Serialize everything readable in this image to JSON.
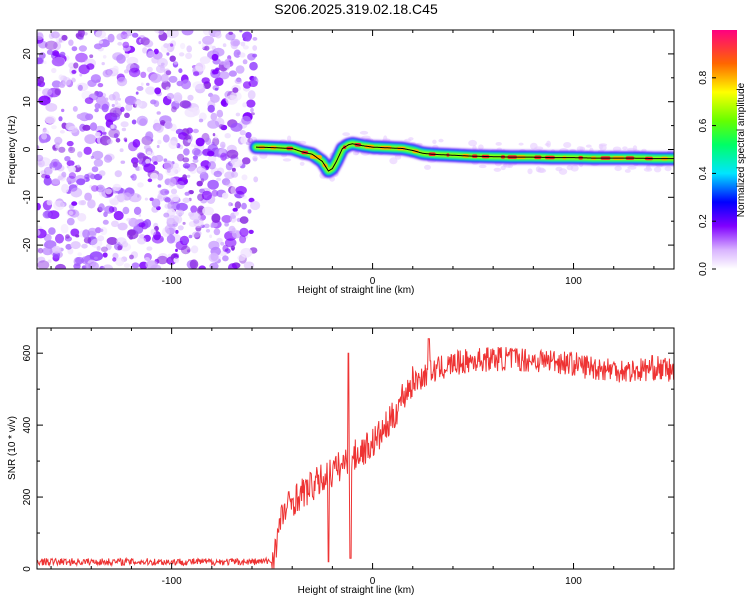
{
  "title": "S206.2025.319.02.18.C45",
  "colors": {
    "snr_line": "#ee3333",
    "ridge_line": "#000000",
    "speckle": "#8a2be2"
  },
  "chart_data": [
    {
      "type": "heatmap",
      "name": "spectrogram",
      "title": "S206.2025.319.02.18.C45",
      "xlabel": "Height of straight line (km)",
      "ylabel": "Frequency (Hz)",
      "xlim": [
        -167,
        150
      ],
      "ylim": [
        -25,
        25
      ],
      "xticks": [
        -100,
        0,
        100
      ],
      "yticks": [
        -20,
        -10,
        0,
        10,
        20
      ],
      "noise_region_x": [
        -167,
        -58
      ],
      "ridge": {
        "x": [
          -58,
          -50,
          -45,
          -40,
          -35,
          -30,
          -25,
          -22,
          -20,
          -18,
          -15,
          -12,
          -10,
          -5,
          0,
          5,
          10,
          15,
          20,
          25,
          30,
          40,
          50,
          60,
          70,
          80,
          90,
          100,
          110,
          120,
          130,
          140,
          150
        ],
        "y": [
          0.5,
          0.4,
          0.3,
          0.2,
          -0.5,
          -1.0,
          -2.5,
          -4.5,
          -4.0,
          -2.5,
          0.2,
          1.0,
          1.2,
          0.8,
          0.5,
          0.4,
          0.3,
          0.2,
          -0.2,
          -0.8,
          -1.0,
          -1.2,
          -1.4,
          -1.5,
          -1.6,
          -1.6,
          -1.7,
          -1.7,
          -1.8,
          -1.8,
          -1.8,
          -1.9,
          -1.9
        ]
      },
      "colorbar": {
        "label": "Normalized spectral amplitude",
        "range": [
          0,
          1
        ],
        "ticks": [
          0,
          0.2,
          0.4,
          0.6,
          0.8
        ],
        "tick_labels": [
          "0.0",
          "0.2",
          "0.4",
          "0.6",
          "0.8"
        ]
      }
    },
    {
      "type": "line",
      "name": "snr",
      "xlabel": "Height of straight line (km)",
      "ylabel": "SNR (10 * v/v)",
      "xlim": [
        -167,
        150
      ],
      "ylim": [
        0,
        670
      ],
      "xticks": [
        -100,
        0,
        100
      ],
      "yticks": [
        0,
        200,
        400,
        600
      ],
      "trend": {
        "x": [
          -167,
          -60,
          -50,
          -48,
          -45,
          -40,
          -35,
          -30,
          -25,
          -20,
          -15,
          -10,
          -5,
          0,
          5,
          10,
          15,
          20,
          30,
          40,
          50,
          60,
          70,
          80,
          90,
          100,
          110,
          120,
          130,
          140,
          150
        ],
        "y": [
          20,
          20,
          22,
          70,
          150,
          190,
          210,
          230,
          250,
          270,
          290,
          310,
          330,
          350,
          380,
          420,
          480,
          520,
          550,
          570,
          580,
          585,
          585,
          580,
          580,
          570,
          560,
          555,
          550,
          560,
          550
        ]
      },
      "noise_amplitude": [
        {
          "from": -167,
          "to": -50,
          "amp": 10
        },
        {
          "from": -50,
          "to": 20,
          "amp": 45
        },
        {
          "from": 20,
          "to": 150,
          "amp": 35
        }
      ],
      "spikes": [
        {
          "x": -12,
          "y": 600
        },
        {
          "x": -11,
          "y": 30
        },
        {
          "x": -22,
          "y": 20
        },
        {
          "x": 28,
          "y": 640
        }
      ]
    }
  ]
}
